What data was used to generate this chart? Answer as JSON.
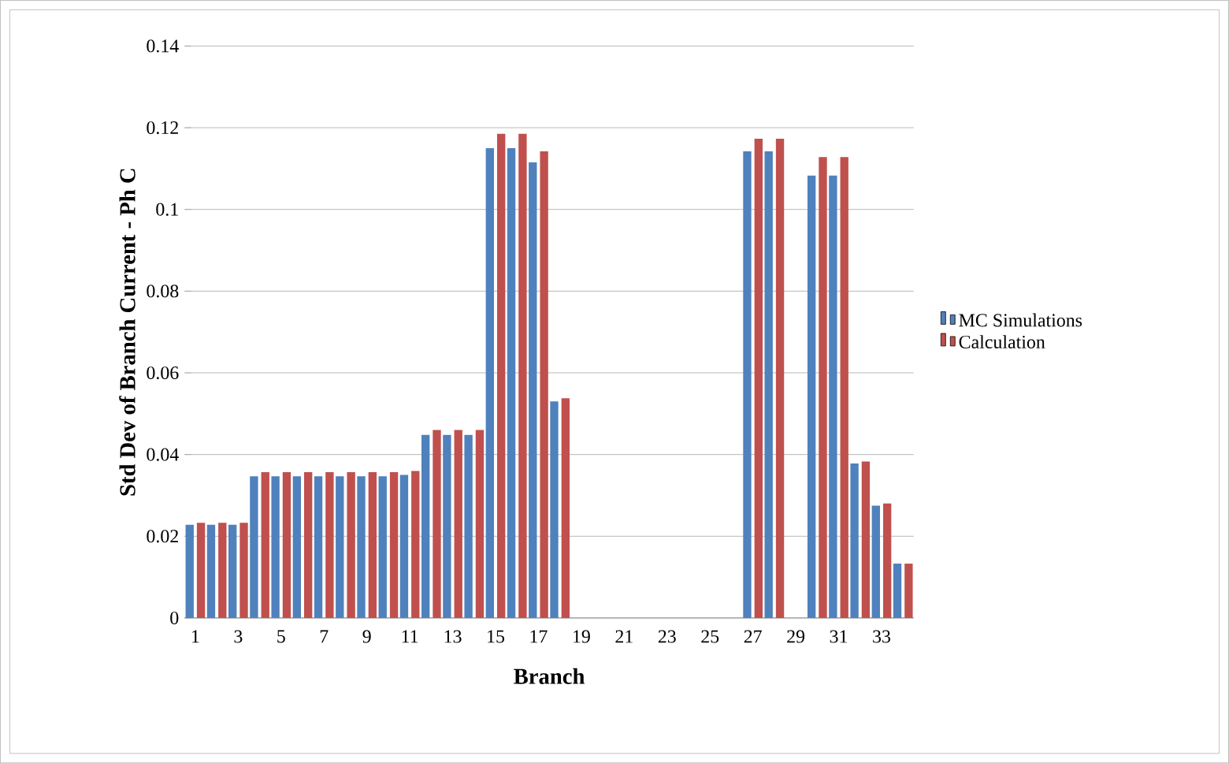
{
  "chart_data": {
    "type": "bar",
    "xlabel": "Branch",
    "ylabel": "Std Dev of Branch Current - Ph C",
    "categories": [
      "1",
      null,
      "3",
      null,
      "5",
      null,
      "7",
      null,
      "9",
      null,
      "11",
      null,
      "13",
      null,
      "15",
      null,
      "17",
      null,
      "19",
      null,
      "21",
      null,
      "23",
      null,
      "25",
      null,
      "27",
      null,
      "29",
      null,
      "31",
      null,
      "33",
      null
    ],
    "series": [
      {
        "name": "MC Simulations",
        "color": "#4f81bd",
        "values": [
          0.0228,
          0.0228,
          0.0228,
          0.0347,
          0.0347,
          0.0347,
          0.0347,
          0.0347,
          0.0347,
          0.0347,
          0.035,
          0.0448,
          0.0448,
          0.0448,
          0.115,
          0.115,
          0.1115,
          0.053,
          0,
          0,
          0,
          0,
          0,
          0,
          0,
          0,
          0.1142,
          0.1142,
          0,
          0.1083,
          0.1083,
          0.0378,
          0.0275,
          0.0133
        ]
      },
      {
        "name": "Calculation",
        "color": "#c0504d",
        "values": [
          0.0233,
          0.0233,
          0.0233,
          0.0357,
          0.0357,
          0.0357,
          0.0357,
          0.0357,
          0.0357,
          0.0357,
          0.036,
          0.046,
          0.046,
          0.046,
          0.1185,
          0.1185,
          0.1142,
          0.0538,
          0,
          0,
          0,
          0,
          0,
          0,
          0,
          0,
          0.1173,
          0.1173,
          0,
          0.1128,
          0.1128,
          0.0383,
          0.028,
          0.0133
        ]
      }
    ],
    "ylim": [
      0,
      0.14
    ],
    "yticks": [
      0,
      0.02,
      0.04,
      0.06,
      0.08,
      0.1,
      0.12,
      0.14
    ],
    "grid": "y",
    "legend": "right"
  }
}
